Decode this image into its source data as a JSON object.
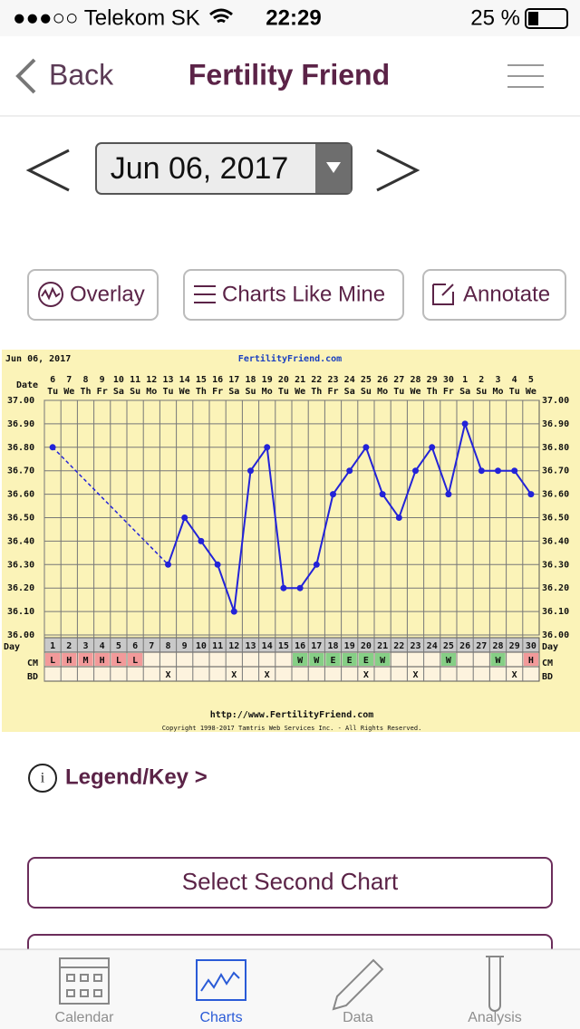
{
  "status_bar": {
    "carrier": "●●●○○ Telekom SK",
    "time": "22:29",
    "battery": "25 %"
  },
  "nav": {
    "back": "Back",
    "title": "Fertility Friend"
  },
  "date_picker": {
    "date": "Jun 06, 2017"
  },
  "buttons": [
    "Overlay",
    "Charts Like Mine",
    "Annotate"
  ],
  "chart_data": {
    "type": "line",
    "title": "Jun 06, 2017",
    "subtitle": "FertilityFriend.com",
    "date_label": "Date",
    "categories": [
      "6",
      "7",
      "8",
      "9",
      "10",
      "11",
      "12",
      "13",
      "14",
      "15",
      "16",
      "17",
      "18",
      "19",
      "20",
      "21",
      "22",
      "23",
      "24",
      "25",
      "26",
      "27",
      "28",
      "29",
      "30",
      "1",
      "2",
      "3",
      "4",
      "5"
    ],
    "weekdays": [
      "Tu",
      "We",
      "Th",
      "Fr",
      "Sa",
      "Su",
      "Mo",
      "Tu",
      "We",
      "Th",
      "Fr",
      "Sa",
      "Su",
      "Mo",
      "Tu",
      "We",
      "Th",
      "Fr",
      "Sa",
      "Su",
      "Mo",
      "Tu",
      "We",
      "Th",
      "Fr",
      "Sa",
      "Su",
      "Mo",
      "Tu",
      "We"
    ],
    "values": [
      36.8,
      null,
      null,
      null,
      null,
      null,
      null,
      36.3,
      36.5,
      36.4,
      36.3,
      36.1,
      36.7,
      36.8,
      36.2,
      36.2,
      36.3,
      36.6,
      36.7,
      36.8,
      36.6,
      36.5,
      36.7,
      36.8,
      36.6,
      36.9,
      36.7,
      36.7,
      36.7,
      36.6
    ],
    "color": "#2323d8",
    "ylim": [
      36.0,
      37.0
    ],
    "yticks": [
      {
        "value": 36.0,
        "label": "36.00"
      },
      {
        "value": 36.1,
        "label": "36.10"
      },
      {
        "value": 36.2,
        "label": "36.20"
      },
      {
        "value": 36.3,
        "label": "36.30"
      },
      {
        "value": 36.4,
        "label": "36.40"
      },
      {
        "value": 36.5,
        "label": "36.50"
      },
      {
        "value": 36.6,
        "label": "36.60"
      },
      {
        "value": 36.7,
        "label": "36.70"
      },
      {
        "value": 36.8,
        "label": "36.80"
      },
      {
        "value": 36.9,
        "label": "36.90"
      },
      {
        "value": 37.0,
        "label": "37.00"
      }
    ],
    "grid": true,
    "day_label": "Day",
    "days": [
      1,
      2,
      3,
      4,
      5,
      6,
      7,
      8,
      9,
      10,
      11,
      12,
      13,
      14,
      15,
      16,
      17,
      18,
      19,
      20,
      21,
      22,
      23,
      24,
      25,
      26,
      27,
      28,
      29,
      30
    ],
    "cm_label": "CM",
    "cm": [
      "L",
      "H",
      "M",
      "H",
      "L",
      "L",
      null,
      null,
      null,
      null,
      null,
      null,
      null,
      null,
      null,
      "W",
      "W",
      "E",
      "E",
      "E",
      "W",
      null,
      null,
      null,
      "W",
      null,
      null,
      "W",
      null,
      "H"
    ],
    "cm_colors": {
      "L": "#f29a9a",
      "H": "#f29a9a",
      "M": "#f29a9a",
      "W": "#86cf86",
      "E": "#86cf86"
    },
    "bd_label": "BD",
    "bd": [
      null,
      null,
      null,
      null,
      null,
      null,
      null,
      "X",
      null,
      null,
      null,
      "X",
      null,
      "X",
      null,
      null,
      null,
      null,
      null,
      "X",
      null,
      null,
      "X",
      null,
      null,
      null,
      null,
      null,
      "X",
      null
    ],
    "url": "http://www.FertilityFriend.com",
    "copyright": "Copyright 1998-2017 Tamtris Web Services Inc. - All Rights Reserved."
  },
  "legend_link": "Legend/Key >",
  "select_button": "Select Second Chart",
  "tabs": [
    "Calendar",
    "Charts",
    "Data",
    "Analysis"
  ],
  "active_tab": 1
}
